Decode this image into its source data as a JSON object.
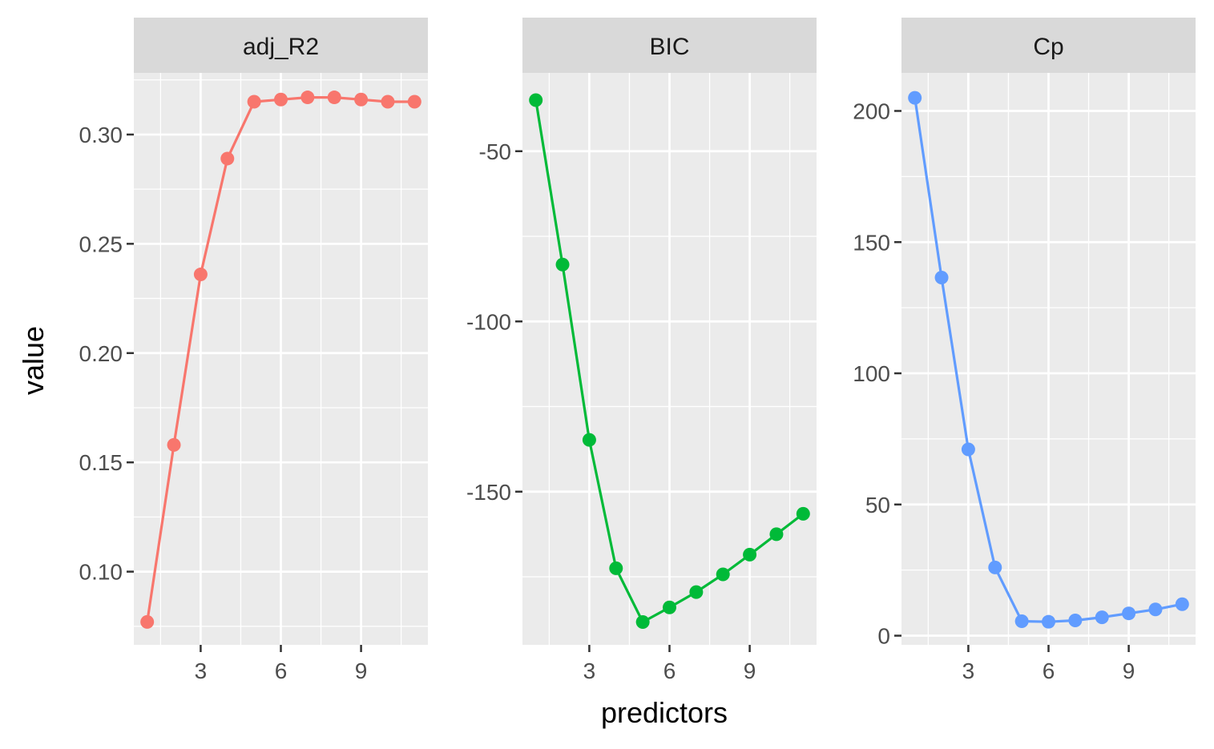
{
  "chart_data": {
    "type": "line",
    "xlabel": "predictors",
    "ylabel": "value",
    "x": [
      1,
      2,
      3,
      4,
      5,
      6,
      7,
      8,
      9,
      10,
      11
    ],
    "facets": [
      {
        "name": "adj_R2",
        "color": "#F8766D",
        "values": [
          0.077,
          0.158,
          0.236,
          0.289,
          0.315,
          0.316,
          0.317,
          0.317,
          0.316,
          0.315,
          0.315
        ],
        "ylim": [
          0.0665,
          0.3282
        ],
        "yticks": [
          0.1,
          0.15,
          0.2,
          0.25,
          0.3
        ],
        "ytick_labels": [
          "0.10",
          "0.15",
          "0.20",
          "0.25",
          "0.30"
        ]
      },
      {
        "name": "BIC",
        "color": "#00BA38",
        "values": [
          -35,
          -83.3,
          -134.8,
          -172.5,
          -188.3,
          -184.0,
          -179.5,
          -174.3,
          -168.5,
          -162.5,
          -156.5
        ],
        "ylim": [
          -195,
          -27
        ],
        "yticks": [
          -50,
          -100,
          -150
        ],
        "ytick_labels": [
          "-50",
          "-100",
          "-150"
        ]
      },
      {
        "name": "Cp",
        "color": "#619CFF",
        "values": [
          205,
          136.5,
          71,
          26,
          5.5,
          5.3,
          5.8,
          7.0,
          8.5,
          10,
          12
        ],
        "ylim": [
          -3.5,
          214.5
        ],
        "yticks": [
          0,
          50,
          100,
          150,
          200
        ],
        "ytick_labels": [
          "0",
          "50",
          "100",
          "150",
          "200"
        ]
      }
    ],
    "xlim": [
      0.5,
      11.5
    ],
    "xticks": [
      3,
      6,
      9
    ],
    "xtick_labels": [
      "3",
      "6",
      "9"
    ],
    "grid": true,
    "legend": "none"
  }
}
